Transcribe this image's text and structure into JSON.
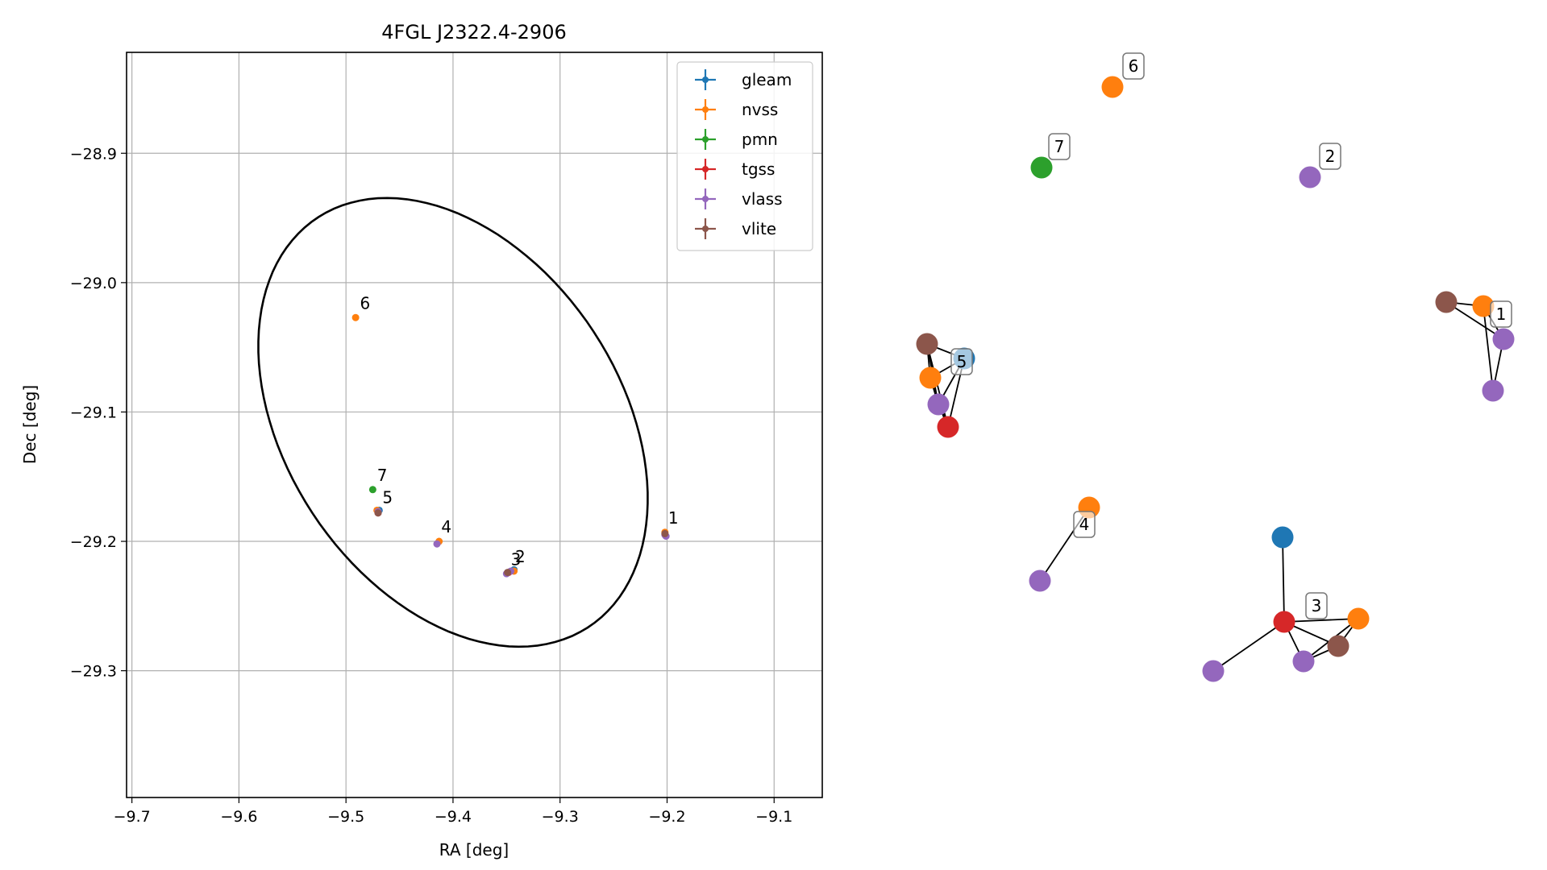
{
  "chart_data": [
    {
      "type": "scatter",
      "title": "4FGL J2322.4-2906",
      "xlabel": "RA [deg]",
      "ylabel": "Dec [deg]",
      "xlim": [
        -9.705,
        -9.055
      ],
      "ylim": [
        -29.398,
        -28.822
      ],
      "xticks": [
        -9.7,
        -9.6,
        -9.5,
        -9.4,
        -9.3,
        -9.2,
        -9.1
      ],
      "xtick_labels": [
        "−9.7",
        "−9.6",
        "−9.5",
        "−9.4",
        "−9.3",
        "−9.2",
        "−9.1"
      ],
      "yticks": [
        -28.9,
        -29.0,
        -29.1,
        -29.2,
        -29.3
      ],
      "ytick_labels": [
        "−28.9",
        "−29.0",
        "−29.1",
        "−29.2",
        "−29.3"
      ],
      "grid": true,
      "legend_position": "top-right",
      "series": [
        {
          "name": "gleam",
          "color": "#1f77b4",
          "points": [
            {
              "x": -9.469,
              "y": -29.176
            },
            {
              "x": -9.343,
              "y": -29.222
            }
          ]
        },
        {
          "name": "nvss",
          "color": "#ff7f0e",
          "points": [
            {
              "x": -9.491,
              "y": -29.027
            },
            {
              "x": -9.413,
              "y": -29.2
            },
            {
              "x": -9.202,
              "y": -29.193
            },
            {
              "x": -9.471,
              "y": -29.176
            },
            {
              "x": -9.343,
              "y": -29.223
            }
          ]
        },
        {
          "name": "pmn",
          "color": "#2ca02c",
          "points": [
            {
              "x": -9.475,
              "y": -29.16
            }
          ]
        },
        {
          "name": "tgss",
          "color": "#d62728",
          "points": [
            {
              "x": -9.348,
              "y": -29.224
            },
            {
              "x": -9.47,
              "y": -29.178
            }
          ]
        },
        {
          "name": "vlass",
          "color": "#9467bd",
          "points": [
            {
              "x": -9.415,
              "y": -29.202
            },
            {
              "x": -9.201,
              "y": -29.196
            },
            {
              "x": -9.35,
              "y": -29.225
            },
            {
              "x": -9.346,
              "y": -29.223
            },
            {
              "x": -9.47,
              "y": -29.177
            },
            {
              "x": -9.202,
              "y": -29.195
            }
          ]
        },
        {
          "name": "vlite",
          "color": "#8c564b",
          "points": [
            {
              "x": -9.202,
              "y": -29.194
            },
            {
              "x": -9.349,
              "y": -29.224
            },
            {
              "x": -9.47,
              "y": -29.178
            }
          ]
        }
      ],
      "annotations": [
        {
          "text": "1",
          "x": -9.205,
          "y": -29.19
        },
        {
          "text": "2",
          "x": -9.348,
          "y": -29.22
        },
        {
          "text": "3",
          "x": -9.352,
          "y": -29.222
        },
        {
          "text": "4",
          "x": -9.417,
          "y": -29.197
        },
        {
          "text": "5",
          "x": -9.472,
          "y": -29.174
        },
        {
          "text": "6",
          "x": -9.493,
          "y": -29.024
        },
        {
          "text": "7",
          "x": -9.477,
          "y": -29.157
        }
      ],
      "ellipse": {
        "center_x": -9.4,
        "center_y": -29.108,
        "semi_major": 0.206,
        "semi_minor": 0.144,
        "angle_deg": -41
      }
    },
    {
      "type": "network",
      "node_colors": {
        "gleam": "#1f77b4",
        "nvss": "#ff7f0e",
        "pmn": "#2ca02c",
        "tgss": "#d62728",
        "vlass": "#9467bd",
        "vlite": "#8c564b"
      },
      "nodes": [
        {
          "id": "n6",
          "series": "nvss",
          "label": "6"
        },
        {
          "id": "n7",
          "series": "pmn",
          "label": "7"
        },
        {
          "id": "n2",
          "series": "vlass",
          "label": "2"
        },
        {
          "id": "c1_vlite",
          "series": "vlite"
        },
        {
          "id": "c1_nvss",
          "series": "nvss"
        },
        {
          "id": "c1_vlass_a",
          "series": "vlass",
          "label": "1"
        },
        {
          "id": "c1_vlass_b",
          "series": "vlass"
        },
        {
          "id": "c5_gleam",
          "series": "gleam"
        },
        {
          "id": "c5_vlite",
          "series": "vlite"
        },
        {
          "id": "c5_nvss",
          "series": "nvss",
          "label": "5"
        },
        {
          "id": "c5_vlass",
          "series": "vlass"
        },
        {
          "id": "c5_tgss",
          "series": "tgss"
        },
        {
          "id": "c4_nvss",
          "series": "nvss",
          "label": "4"
        },
        {
          "id": "c4_vlass",
          "series": "vlass"
        },
        {
          "id": "c3_gleam",
          "series": "gleam"
        },
        {
          "id": "c3_tgss",
          "series": "tgss",
          "label": "3"
        },
        {
          "id": "c3_nvss",
          "series": "nvss"
        },
        {
          "id": "c3_vlite",
          "series": "vlite"
        },
        {
          "id": "c3_vlass_a",
          "series": "vlass"
        },
        {
          "id": "c3_vlass_b",
          "series": "vlass"
        }
      ],
      "edges": [
        [
          "c1_vlite",
          "c1_nvss"
        ],
        [
          "c1_vlite",
          "c1_vlass_a"
        ],
        [
          "c1_nvss",
          "c1_vlass_a"
        ],
        [
          "c1_nvss",
          "c1_vlass_b"
        ],
        [
          "c1_vlass_a",
          "c1_vlass_b"
        ],
        [
          "c5_gleam",
          "c5_vlite"
        ],
        [
          "c5_gleam",
          "c5_nvss"
        ],
        [
          "c5_gleam",
          "c5_vlass"
        ],
        [
          "c5_gleam",
          "c5_tgss"
        ],
        [
          "c5_vlite",
          "c5_nvss"
        ],
        [
          "c5_vlite",
          "c5_vlass"
        ],
        [
          "c5_vlite",
          "c5_tgss"
        ],
        [
          "c5_nvss",
          "c5_vlass"
        ],
        [
          "c5_nvss",
          "c5_tgss"
        ],
        [
          "c5_vlass",
          "c5_tgss"
        ],
        [
          "c4_nvss",
          "c4_vlass"
        ],
        [
          "c3_gleam",
          "c3_tgss"
        ],
        [
          "c3_tgss",
          "c3_nvss"
        ],
        [
          "c3_tgss",
          "c3_vlite"
        ],
        [
          "c3_tgss",
          "c3_vlass_a"
        ],
        [
          "c3_tgss",
          "c3_vlass_b"
        ],
        [
          "c3_nvss",
          "c3_vlite"
        ],
        [
          "c3_nvss",
          "c3_vlass_b"
        ],
        [
          "c3_vlite",
          "c3_vlass_b"
        ]
      ]
    }
  ]
}
